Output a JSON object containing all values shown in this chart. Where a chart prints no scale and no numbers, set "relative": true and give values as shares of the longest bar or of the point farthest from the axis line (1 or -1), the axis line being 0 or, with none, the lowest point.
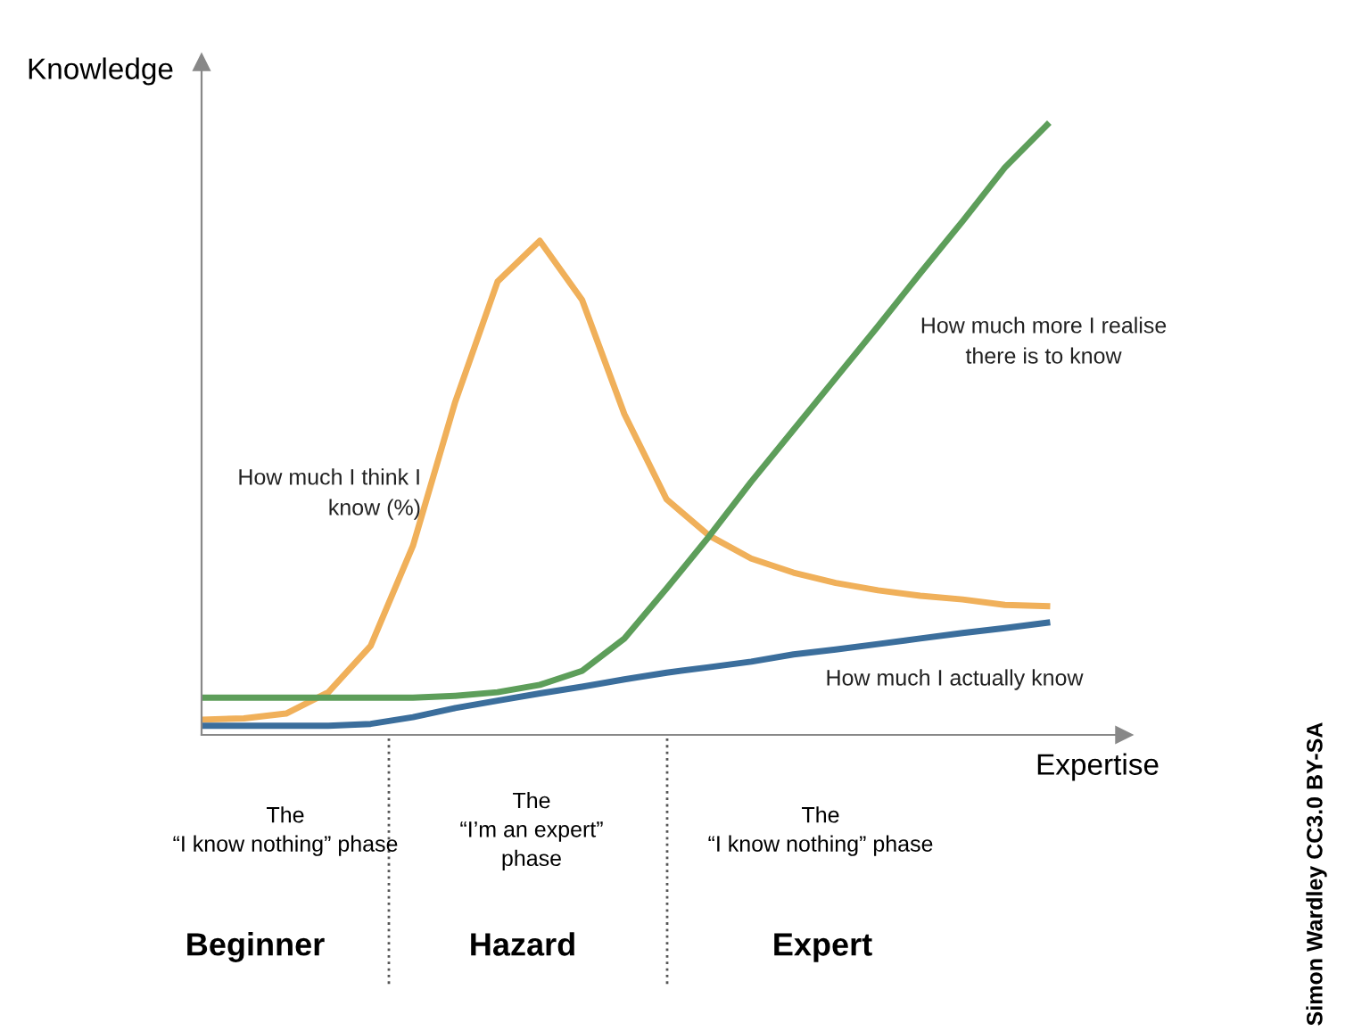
{
  "chart_data": {
    "type": "line",
    "relative": true,
    "xlabel": "Expertise",
    "ylabel": "Knowledge",
    "legend": false,
    "marker": "none",
    "line_style": "solid",
    "categories": [
      null,
      null,
      null,
      null,
      null,
      null,
      null,
      null,
      null,
      null,
      null,
      null,
      null,
      null,
      null,
      null,
      null,
      null,
      null,
      null,
      null
    ],
    "series": [
      {
        "name": "How much I think I\nknow (%)",
        "color": "#f0b05a",
        "values": [
          0.025,
          0.027,
          0.035,
          0.07,
          0.146,
          0.31,
          0.546,
          0.743,
          0.81,
          0.713,
          0.526,
          0.386,
          0.327,
          0.289,
          0.266,
          0.249,
          0.237,
          0.228,
          0.222,
          0.213,
          0.211
        ]
      },
      {
        "name": "How much more I realise\nthere is to know",
        "color": "#5d9e5a",
        "values": [
          0.061,
          0.061,
          0.061,
          0.061,
          0.061,
          0.061,
          0.064,
          0.07,
          0.082,
          0.105,
          0.158,
          0.24,
          0.325,
          0.415,
          0.5,
          0.585,
          0.67,
          0.757,
          0.842,
          0.93,
          1
        ]
      },
      {
        "name": "How much I actually know",
        "color": "#3b6e9c",
        "values": [
          0.015,
          0.015,
          0.015,
          0.015,
          0.018,
          0.029,
          0.044,
          0.056,
          0.068,
          0.079,
          0.091,
          0.102,
          0.111,
          0.12,
          0.132,
          0.14,
          0.149,
          0.158,
          0.167,
          0.175,
          0.184
        ]
      }
    ],
    "annotations": [
      "The\n“I know nothing” phase",
      "The\n“I’m an expert”\nphase",
      "The\n“I know nothing” phase",
      "Beginner",
      "Hazard",
      "Expert",
      "Simon Wardley CC3.0 BY-SA"
    ]
  }
}
